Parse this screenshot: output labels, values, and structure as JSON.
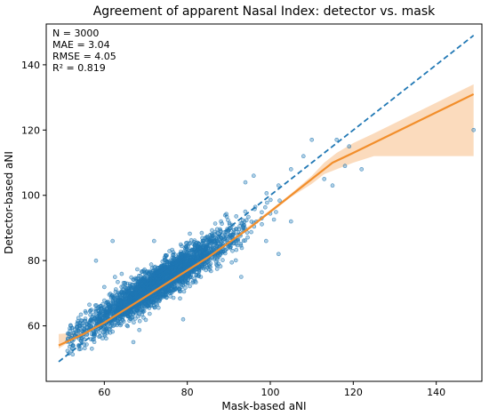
{
  "chart_data": {
    "type": "scatter",
    "title": "Agreement of apparent Nasal Index: detector vs. mask",
    "xlabel": "Mask-based aNI",
    "ylabel": "Detector-based aNI",
    "xlim": [
      46,
      151
    ],
    "ylim": [
      43,
      152.5
    ],
    "xticks": [
      60,
      80,
      100,
      120,
      140
    ],
    "yticks": [
      60,
      80,
      100,
      120,
      140
    ],
    "grid": false,
    "stats": [
      "N = 3000",
      "MAE = 3.04",
      "RMSE = 4.05",
      "R² = 0.819"
    ],
    "identity_line": {
      "x": [
        49,
        149
      ],
      "y": [
        49,
        149
      ],
      "color": "#1f77b4",
      "style": "dashed"
    },
    "trend_line": {
      "color": "#f28e2b",
      "x": [
        49,
        55,
        60,
        65,
        70,
        75,
        80,
        85,
        90,
        95,
        100,
        105,
        110,
        115,
        120,
        149
      ],
      "y": [
        54,
        57.5,
        61,
        65,
        69,
        73,
        77,
        81,
        85.5,
        90,
        95,
        100,
        105,
        110,
        113,
        131
      ]
    },
    "ci_band": {
      "color": "#f9cfa7",
      "x": [
        49,
        52,
        55,
        60,
        70,
        80,
        90,
        100,
        105,
        110,
        113,
        116,
        120,
        125,
        149
      ],
      "lower": [
        53,
        55.5,
        57,
        60.5,
        68.5,
        76.5,
        85,
        94.5,
        99.5,
        103.5,
        106.5,
        108,
        110,
        112,
        112
      ],
      "upper": [
        57.5,
        57.8,
        58,
        61.5,
        69.5,
        77.5,
        86,
        95.5,
        100.5,
        106,
        110,
        113,
        116,
        119,
        134
      ]
    },
    "scatter": {
      "n": 3000,
      "point_color": "#1f77b4",
      "outliers": [
        {
          "x": 149,
          "y": 120
        },
        {
          "x": 122,
          "y": 108
        },
        {
          "x": 116,
          "y": 117
        },
        {
          "x": 118,
          "y": 109
        },
        {
          "x": 110,
          "y": 117
        },
        {
          "x": 108,
          "y": 112
        },
        {
          "x": 105,
          "y": 108
        },
        {
          "x": 102,
          "y": 103
        },
        {
          "x": 96,
          "y": 106
        },
        {
          "x": 94,
          "y": 104
        },
        {
          "x": 105,
          "y": 92
        },
        {
          "x": 115,
          "y": 103
        },
        {
          "x": 58,
          "y": 80
        },
        {
          "x": 62,
          "y": 86
        },
        {
          "x": 72,
          "y": 86
        },
        {
          "x": 53,
          "y": 57
        },
        {
          "x": 57,
          "y": 53
        },
        {
          "x": 67,
          "y": 55
        },
        {
          "x": 79,
          "y": 62
        },
        {
          "x": 93,
          "y": 75
        },
        {
          "x": 99,
          "y": 86
        },
        {
          "x": 102,
          "y": 82
        },
        {
          "x": 113,
          "y": 105
        },
        {
          "x": 119,
          "y": 115
        }
      ]
    }
  }
}
